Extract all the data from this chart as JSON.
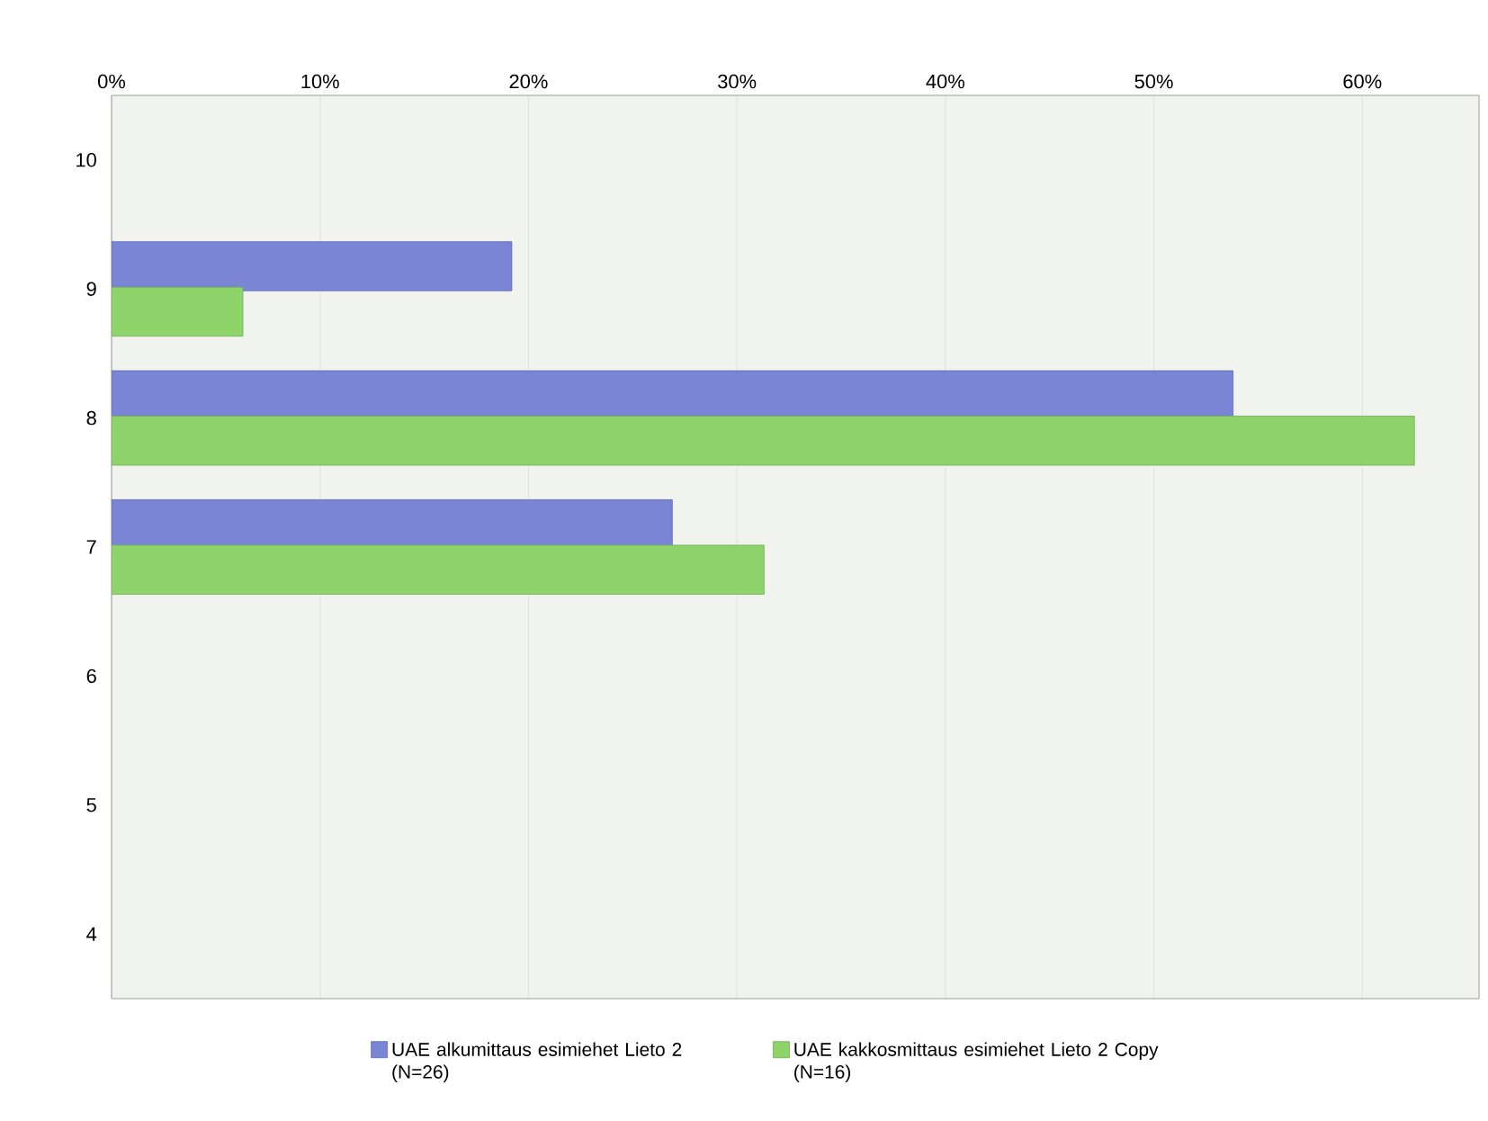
{
  "chart_data": {
    "type": "bar",
    "orientation": "horizontal",
    "categories": [
      "10",
      "9",
      "8",
      "7",
      "6",
      "5",
      "4"
    ],
    "series": [
      {
        "name": "UAE alkumittaus esimiehet Lieto 2 (N=26)",
        "color": "#7b85d6",
        "values": [
          null,
          19.2,
          53.8,
          26.9,
          null,
          null,
          null
        ]
      },
      {
        "name": "UAE kakkosmittaus esimiehet Lieto 2 Copy (N=16)",
        "color": "#8fd46a",
        "values": [
          null,
          6.3,
          62.5,
          31.3,
          null,
          null,
          null
        ]
      }
    ],
    "xlim": [
      0,
      65.6
    ],
    "xticks": [
      {
        "value": 0,
        "label": "0%"
      },
      {
        "value": 10,
        "label": "10%"
      },
      {
        "value": 20,
        "label": "20%"
      },
      {
        "value": 30,
        "label": "30%"
      },
      {
        "value": 40,
        "label": "40%"
      },
      {
        "value": 50,
        "label": "50%"
      },
      {
        "value": 60,
        "label": "60%"
      }
    ],
    "grid": "x",
    "legend": "bottom"
  }
}
